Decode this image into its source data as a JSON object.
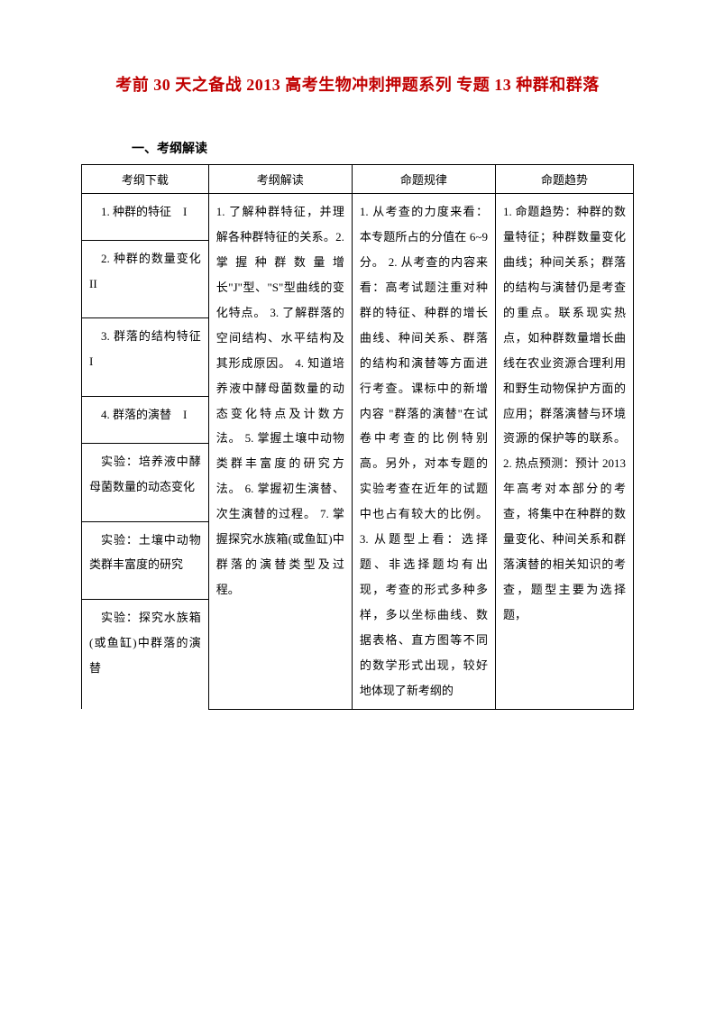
{
  "title": "考前 30 天之备战 2013 高考生物冲刺押题系列 专题 13 种群和群落",
  "section_label": "一、考纲解读",
  "headers": {
    "h1": "考纲下载",
    "h2": "考纲解读",
    "h3": "命题规律",
    "h4": "命题趋势"
  },
  "left_rows": {
    "r1": "1. 种群的特征　I",
    "r2": "2. 种群的数量变化　II",
    "r3": "3. 群落的结构特征　I",
    "r4": "4. 群落的演替　I",
    "r5": "实验：培养液中酵母菌数量的动态变化",
    "r6": "实验：土壤中动物类群丰富度的研究",
    "r7": "实验：探究水族箱(或鱼缸)中群落的演替"
  },
  "col2": "1. 了解种群特征，并理解各种群特征的关系。2. 掌握种群数量增长\"J\"型、\"S\"型曲线的变化特点。\n3. 了解群落的空间结构、水平结构及其形成原因。\n4. 知道培养液中酵母菌数量的动态变化特点及计数方法。\n5. 掌握土壤中动物类群丰富度的研究方法。\n6. 掌握初生演替、次生演替的过程。\n7. 掌握探究水族箱(或鱼缸)中群落的演替类型及过程。",
  "col3": "1. 从考查的力度来看：本专题所占的分值在 6~9 分。\n2. 从考查的内容来看：高考试题注重对种群的特征、种群的增长曲线、种间关系、群落的结构和演替等方面进行考查。课标中的新增内容 \"群落的演替\"在试卷中考查的比例特别高。另外，对本专题的实验考查在近年的试题中也占有较大的比例。\n3. 从题型上看：选择题、非选择题均有出现，考查的形式多种多样，多以坐标曲线、数据表格、直方图等不同的数学形式出现，较好地体现了新考纲的",
  "col4": "1. 命题趋势：种群的数量特征；种群数量变化曲线；种间关系；群落的结构与演替仍是考查的重点。联系现实热点，如种群数量增长曲线在农业资源合理利用和野生动物保护方面的应用；群落演替与环境资源的保护等的联系。\n2. 热点预测：预计 2013 年高考对本部分的考查，将集中在种群的数量变化、种间关系和群落演替的相关知识的考查，题型主要为选择题，"
}
